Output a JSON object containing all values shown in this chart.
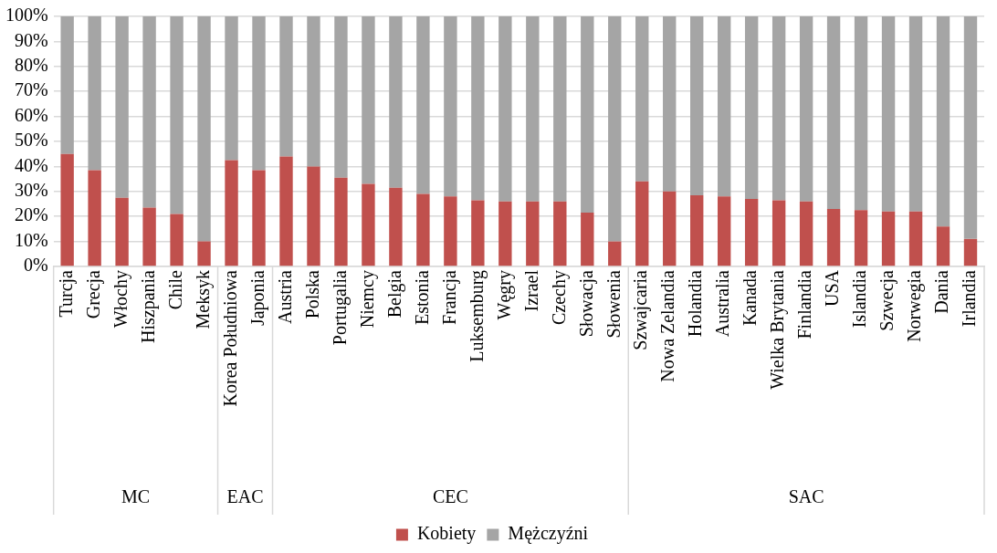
{
  "chart_data": {
    "type": "bar",
    "stacked": true,
    "categories": [
      "Turcja",
      "Grecja",
      "Włochy",
      "Hiszpania",
      "Chile",
      "Meksyk",
      "Korea Południowa",
      "Japonia",
      "Austria",
      "Polska",
      "Portugalia",
      "Niemcy",
      "Belgia",
      "Estonia",
      "Francja",
      "Luksemburg",
      "Węgry",
      "Izrael",
      "Czechy",
      "Słowacja",
      "Słowenia",
      "Szwajcaria",
      "Nowa Zelandia",
      "Holandia",
      "Australia",
      "Kanada",
      "Wielka Brytania",
      "Finlandia",
      "USA",
      "Islandia",
      "Szwecja",
      "Norwegia",
      "Dania",
      "Irlandia"
    ],
    "series": [
      {
        "name": "Kobiety",
        "color": "#c0504d",
        "values": [
          45,
          38.5,
          27.5,
          23.5,
          21,
          10,
          42.5,
          38.5,
          44,
          40,
          35.5,
          33,
          31.5,
          29,
          28,
          26.5,
          26,
          26,
          26,
          21.5,
          10,
          34,
          30,
          28.5,
          28,
          27,
          26.5,
          26,
          23,
          22.5,
          22,
          22,
          16,
          11
        ]
      },
      {
        "name": "Mężczyźni",
        "color": "#a5a5a5",
        "values": [
          55,
          61.5,
          72.5,
          76.5,
          79,
          90,
          57.5,
          61.5,
          56,
          60,
          64.5,
          67,
          68.5,
          71,
          72,
          73.5,
          74,
          74,
          74,
          78.5,
          90,
          66,
          70,
          71.5,
          72,
          73,
          73.5,
          74,
          77,
          77.5,
          78,
          78,
          84,
          89
        ]
      }
    ],
    "ylim": [
      0,
      100
    ],
    "yticks": [
      {
        "value": 0,
        "label": "0%"
      },
      {
        "value": 10,
        "label": "10%"
      },
      {
        "value": 20,
        "label": "20%"
      },
      {
        "value": 30,
        "label": "30%"
      },
      {
        "value": 40,
        "label": "40%"
      },
      {
        "value": 50,
        "label": "50%"
      },
      {
        "value": 60,
        "label": "60%"
      },
      {
        "value": 70,
        "label": "70%"
      },
      {
        "value": 80,
        "label": "80%"
      },
      {
        "value": 90,
        "label": "90%"
      },
      {
        "value": 100,
        "label": "100%"
      }
    ],
    "grid": "y",
    "legend": "bottom",
    "annotations": [
      "MC",
      "EAC",
      "CEC",
      "SAC"
    ]
  }
}
